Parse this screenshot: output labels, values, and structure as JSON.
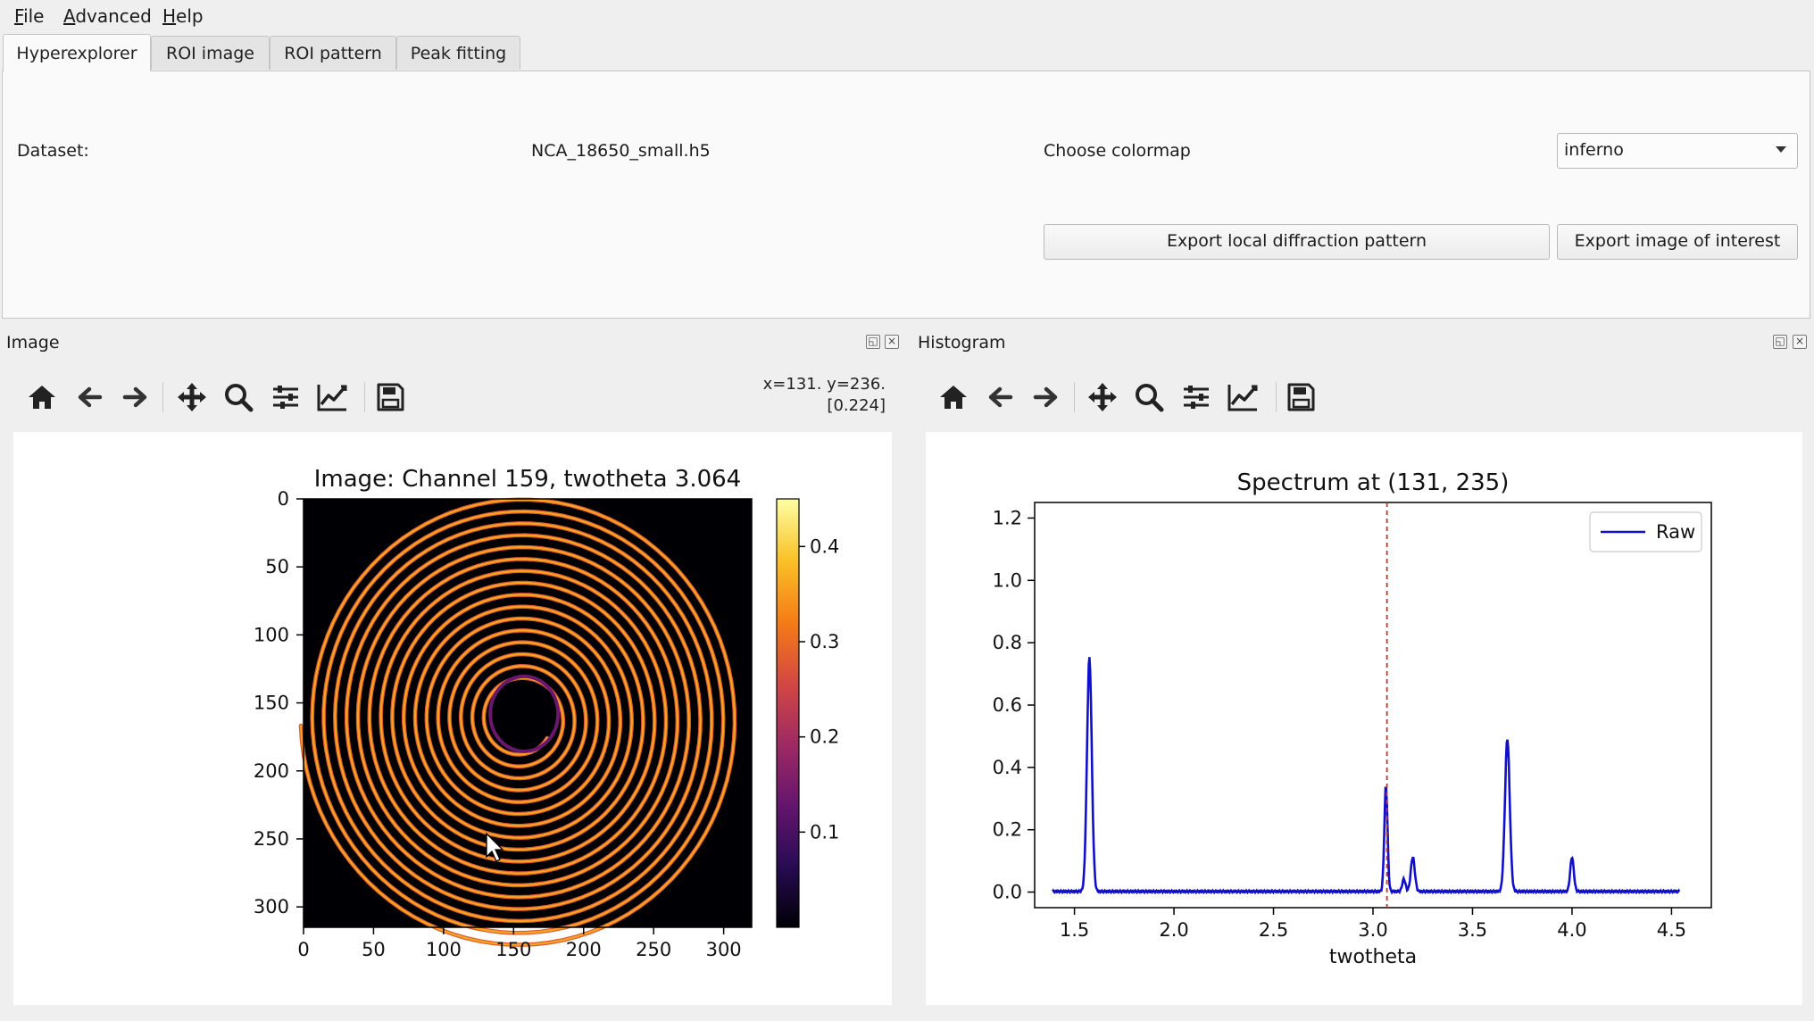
{
  "menu": {
    "file": "File",
    "advanced": "Advanced",
    "help": "Help"
  },
  "tabs": [
    "Hyperexplorer",
    "ROI image",
    "ROI pattern",
    "Peak fitting"
  ],
  "active_tab": "Hyperexplorer",
  "panel": {
    "dataset_label": "Dataset:",
    "dataset_value": "NCA_18650_small.h5",
    "colormap_label": "Choose colormap",
    "colormap_value": "inferno",
    "export_pattern_label": "Export local diffraction pattern",
    "export_image_label": "Export image of interest"
  },
  "image_dock": {
    "title": "Image",
    "coords_line1": "x=131. y=236.",
    "coords_line2": "[0.224]"
  },
  "histogram_dock": {
    "title": "Histogram"
  },
  "toolbar_icons": [
    "home-icon",
    "back-arrow-icon",
    "forward-arrow-icon",
    "pan-move-icon",
    "zoom-magnifier-icon",
    "configure-subplots-icon",
    "edit-axis-icon",
    "save-disk-icon"
  ],
  "chart_data": [
    {
      "type": "heatmap",
      "title": "Image: Channel 159, twotheta 3.064",
      "colormap": "inferno",
      "xlim": [
        0,
        320
      ],
      "ylim": [
        0,
        315
      ],
      "y_inverted": true,
      "x_ticks": [
        "0",
        "50",
        "100",
        "150",
        "200",
        "250",
        "300"
      ],
      "y_ticks": [
        "0",
        "50",
        "100",
        "150",
        "200",
        "250",
        "300"
      ],
      "colorbar": {
        "range": [
          0,
          0.45
        ],
        "ticks": [
          "0.1",
          "0.2",
          "0.3",
          "0.4"
        ]
      },
      "description_of_content": "spiral"
    },
    {
      "type": "line",
      "title": "Spectrum at (131, 235)",
      "xlabel": "twotheta",
      "ylabel": "",
      "xlim": [
        1.3,
        4.7
      ],
      "ylim": [
        -0.05,
        1.25
      ],
      "x_ticks": [
        "1.5",
        "2.0",
        "2.5",
        "3.0",
        "3.5",
        "4.0",
        "4.5"
      ],
      "y_ticks": [
        "0.0",
        "0.2",
        "0.4",
        "0.6",
        "0.8",
        "1.0",
        "1.2"
      ],
      "legend_position": "top-right",
      "marker_x": 3.07,
      "marker_color": "#cc3322",
      "series": [
        {
          "name": "Raw",
          "color": "#1010cc",
          "x_range": [
            1.39,
            4.54
          ],
          "baseline": 0.002,
          "peaks": [
            {
              "x": 1.575,
              "height": 0.75,
              "width": 0.012
            },
            {
              "x": 3.065,
              "height": 0.34,
              "width": 0.008
            },
            {
              "x": 3.155,
              "height": 0.04,
              "width": 0.008
            },
            {
              "x": 3.2,
              "height": 0.11,
              "width": 0.01
            },
            {
              "x": 3.675,
              "height": 0.49,
              "width": 0.012
            },
            {
              "x": 4.0,
              "height": 0.11,
              "width": 0.009
            }
          ]
        }
      ]
    }
  ]
}
